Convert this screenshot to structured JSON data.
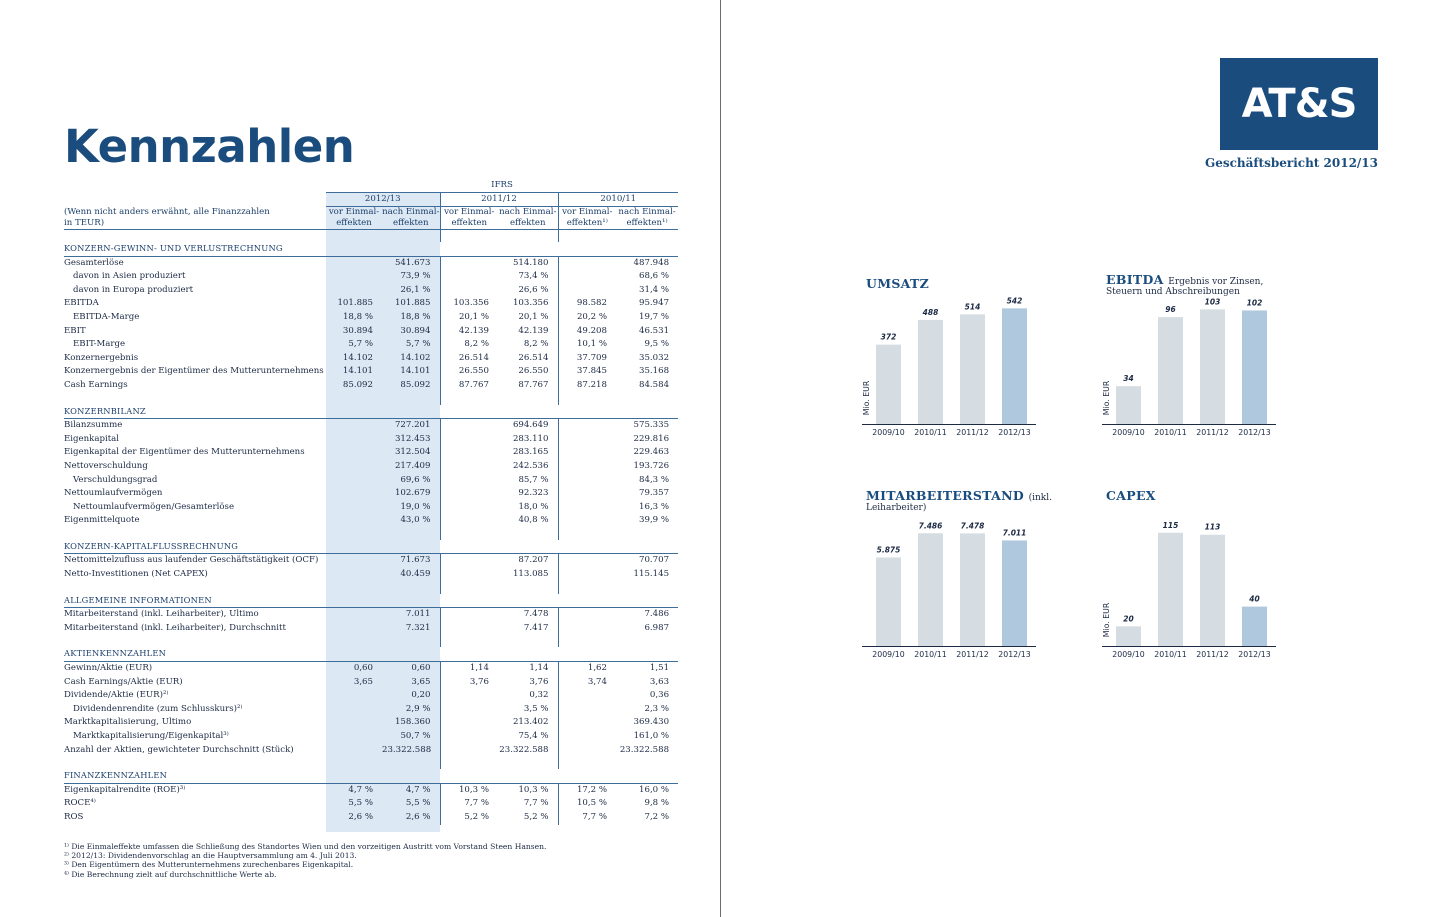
{
  "left": {
    "title": "Kennzahlen",
    "ifrs_label": "IFRS",
    "years": [
      "2012/13",
      "2011/12",
      "2010/11"
    ],
    "note_line1": "(Wenn nicht anders erwähnt, alle Finanzzahlen",
    "note_line2": "in TEUR)",
    "subhead_vor_1": "vor Einmal-",
    "subhead_vor_2": "effekten",
    "subhead_vor_2_fn": "effekten¹⁾",
    "subhead_nach_1": "nach Einmal-",
    "subhead_nach_2": "effekten",
    "subhead_nach_2_fn": "effekten¹⁾",
    "sections": [
      {
        "title": "KONZERN-GEWINN- UND VERLUSTRECHNUNG",
        "rows": [
          {
            "label": "Gesamterlöse",
            "indent": false,
            "values": [
              "",
              "541.673",
              "",
              "514.180",
              "",
              "487.948"
            ]
          },
          {
            "label": "davon in Asien produziert",
            "indent": true,
            "values": [
              "",
              "73,9 %",
              "",
              "73,4 %",
              "",
              "68,6 %"
            ]
          },
          {
            "label": "davon in Europa produziert",
            "indent": true,
            "values": [
              "",
              "26,1 %",
              "",
              "26,6 %",
              "",
              "31,4 %"
            ]
          },
          {
            "label": "EBITDA",
            "indent": false,
            "values": [
              "101.885",
              "101.885",
              "103.356",
              "103.356",
              "98.582",
              "95.947"
            ]
          },
          {
            "label": "EBITDA-Marge",
            "indent": true,
            "values": [
              "18,8 %",
              "18,8 %",
              "20,1 %",
              "20,1 %",
              "20,2 %",
              "19,7 %"
            ]
          },
          {
            "label": "EBIT",
            "indent": false,
            "values": [
              "30.894",
              "30.894",
              "42.139",
              "42.139",
              "49.208",
              "46.531"
            ]
          },
          {
            "label": "EBIT-Marge",
            "indent": true,
            "values": [
              "5,7 %",
              "5,7 %",
              "8,2 %",
              "8,2 %",
              "10,1 %",
              "9,5 %"
            ]
          },
          {
            "label": "Konzernergebnis",
            "indent": false,
            "values": [
              "14.102",
              "14.102",
              "26.514",
              "26.514",
              "37.709",
              "35.032"
            ]
          },
          {
            "label": "Konzernergebnis der Eigentümer des Mutterunternehmens",
            "indent": false,
            "values": [
              "14.101",
              "14.101",
              "26.550",
              "26.550",
              "37.845",
              "35.168"
            ]
          },
          {
            "label": "Cash Earnings",
            "indent": false,
            "values": [
              "85.092",
              "85.092",
              "87.767",
              "87.767",
              "87.218",
              "84.584"
            ]
          }
        ]
      },
      {
        "title": "KONZERNBILANZ",
        "rows": [
          {
            "label": "Bilanzsumme",
            "indent": false,
            "values": [
              "",
              "727.201",
              "",
              "694.649",
              "",
              "575.335"
            ]
          },
          {
            "label": "Eigenkapital",
            "indent": false,
            "values": [
              "",
              "312.453",
              "",
              "283.110",
              "",
              "229.816"
            ]
          },
          {
            "label": "Eigenkapital der Eigentümer des Mutterunternehmens",
            "indent": false,
            "values": [
              "",
              "312.504",
              "",
              "283.165",
              "",
              "229.463"
            ]
          },
          {
            "label": "Nettoverschuldung",
            "indent": false,
            "values": [
              "",
              "217.409",
              "",
              "242.536",
              "",
              "193.726"
            ]
          },
          {
            "label": "Verschuldungsgrad",
            "indent": true,
            "values": [
              "",
              "69,6 %",
              "",
              "85,7 %",
              "",
              "84,3 %"
            ]
          },
          {
            "label": "Nettoumlaufvermögen",
            "indent": false,
            "values": [
              "",
              "102.679",
              "",
              "92.323",
              "",
              "79.357"
            ]
          },
          {
            "label": "Nettoumlaufvermögen/Gesamterlöse",
            "indent": true,
            "values": [
              "",
              "19,0 %",
              "",
              "18,0 %",
              "",
              "16,3 %"
            ]
          },
          {
            "label": "Eigenmittelquote",
            "indent": false,
            "values": [
              "",
              "43,0 %",
              "",
              "40,8 %",
              "",
              "39,9 %"
            ]
          }
        ]
      },
      {
        "title": "KONZERN-KAPITALFLUSSRECHNUNG",
        "rows": [
          {
            "label": "Nettomittelzufluss aus laufender Geschäftstätigkeit (OCF)",
            "indent": false,
            "values": [
              "",
              "71.673",
              "",
              "87.207",
              "",
              "70.707"
            ]
          },
          {
            "label": "Netto-Investitionen (Net CAPEX)",
            "indent": false,
            "values": [
              "",
              "40.459",
              "",
              "113.085",
              "",
              "115.145"
            ]
          }
        ]
      },
      {
        "title": "ALLGEMEINE INFORMATIONEN",
        "rows": [
          {
            "label": "Mitarbeiterstand (inkl. Leiharbeiter), Ultimo",
            "indent": false,
            "values": [
              "",
              "7.011",
              "",
              "7.478",
              "",
              "7.486"
            ]
          },
          {
            "label": "Mitarbeiterstand (inkl. Leiharbeiter), Durchschnitt",
            "indent": false,
            "values": [
              "",
              "7.321",
              "",
              "7.417",
              "",
              "6.987"
            ]
          }
        ]
      },
      {
        "title": "AKTIENKENNZAHLEN",
        "rows": [
          {
            "label": "Gewinn/Aktie (EUR)",
            "indent": false,
            "values": [
              "0,60",
              "0,60",
              "1,14",
              "1,14",
              "1,62",
              "1,51"
            ]
          },
          {
            "label": "Cash Earnings/Aktie (EUR)",
            "indent": false,
            "values": [
              "3,65",
              "3,65",
              "3,76",
              "3,76",
              "3,74",
              "3,63"
            ]
          },
          {
            "label": "Dividende/Aktie (EUR)²⁾",
            "indent": false,
            "values": [
              "",
              "0,20",
              "",
              "0,32",
              "",
              "0,36"
            ]
          },
          {
            "label": "Dividendenrendite (zum Schlusskurs)²⁾",
            "indent": true,
            "values": [
              "",
              "2,9 %",
              "",
              "3,5 %",
              "",
              "2,3 %"
            ]
          },
          {
            "label": "Marktkapitalisierung, Ultimo",
            "indent": false,
            "values": [
              "",
              "158.360",
              "",
              "213.402",
              "",
              "369.430"
            ]
          },
          {
            "label": "Marktkapitalisierung/Eigenkapital³⁾",
            "indent": true,
            "values": [
              "",
              "50,7 %",
              "",
              "75,4 %",
              "",
              "161,0 %"
            ]
          },
          {
            "label": "Anzahl der Aktien, gewichteter Durchschnitt (Stück)",
            "indent": false,
            "values": [
              "",
              "23.322.588",
              "",
              "23.322.588",
              "",
              "23.322.588"
            ]
          }
        ]
      },
      {
        "title": "FINANZKENNZAHLEN",
        "rows": [
          {
            "label": "Eigenkapitalrendite (ROE)³⁾",
            "indent": false,
            "values": [
              "4,7 %",
              "4,7 %",
              "10,3 %",
              "10,3 %",
              "17,2 %",
              "16,0 %"
            ]
          },
          {
            "label": "ROCE⁴⁾",
            "indent": false,
            "values": [
              "5,5 %",
              "5,5 %",
              "7,7 %",
              "7,7 %",
              "10,5 %",
              "9,8 %"
            ]
          },
          {
            "label": "ROS",
            "indent": false,
            "values": [
              "2,6 %",
              "2,6 %",
              "5,2 %",
              "5,2 %",
              "7,7 %",
              "7,2 %"
            ]
          }
        ]
      }
    ],
    "footnotes": [
      "¹⁾ Die Einmaleffekte umfassen die Schließung des Standortes Wien und den vorzeitigen Austritt vom Vorstand Steen Hansen.",
      "²⁾ 2012/13: Dividendenvorschlag an die Hauptversammlung am 4. Juli 2013.",
      "³⁾ Den Eigentümern des Mutterunternehmens zurechenbares Eigenkapital.",
      "⁴⁾ Die Berechnung zielt auf durchschnittliche Werte ab."
    ]
  },
  "right": {
    "logo": "AT&S",
    "report_title": "Geschäftsbericht 2012/13"
  },
  "colors": {
    "brand_blue": "#1a4d7e",
    "bar_grey": "#d5dde2",
    "bar_highlight": "#afc8de",
    "column_band": "#dce8f3"
  },
  "chart_data": [
    {
      "type": "bar",
      "title": "UMSATZ",
      "subtitle": "",
      "subtitle2": "",
      "ylabel": "Mio. EUR",
      "categories": [
        "2009/10",
        "2010/11",
        "2011/12",
        "2012/13"
      ],
      "values": [
        372,
        488,
        514,
        542
      ],
      "value_labels": [
        "372",
        "488",
        "514",
        "542"
      ],
      "ylim": [
        0,
        600
      ],
      "highlight_index": 3
    },
    {
      "type": "bar",
      "title": "EBITDA",
      "subtitle": "Ergebnis vor Zinsen,",
      "subtitle2": "Steuern und Abschreibungen",
      "ylabel": "Mio. EUR",
      "categories": [
        "2009/10",
        "2010/11",
        "2011/12",
        "2012/13"
      ],
      "values": [
        34,
        96,
        103,
        102
      ],
      "value_labels": [
        "34",
        "96",
        "103",
        "102"
      ],
      "ylim": [
        0,
        115
      ],
      "highlight_index": 3
    },
    {
      "type": "bar",
      "title": "MITARBEITERSTAND",
      "subtitle": "(inkl.",
      "subtitle2": "Leiharbeiter)",
      "ylabel": "",
      "categories": [
        "2009/10",
        "2010/11",
        "2011/12",
        "2012/13"
      ],
      "values": [
        5875,
        7486,
        7478,
        7011
      ],
      "value_labels": [
        "5.875",
        "7.486",
        "7.478",
        "7.011"
      ],
      "ylim": [
        0,
        8500
      ],
      "highlight_index": 3
    },
    {
      "type": "bar",
      "title": "CAPEX",
      "subtitle": "",
      "subtitle2": "",
      "ylabel": "Mio. EUR",
      "categories": [
        "2009/10",
        "2010/11",
        "2011/12",
        "2012/13"
      ],
      "values": [
        20,
        115,
        113,
        40
      ],
      "value_labels": [
        "20",
        "115",
        "113",
        "40"
      ],
      "ylim": [
        0,
        130
      ],
      "highlight_index": 3
    }
  ]
}
